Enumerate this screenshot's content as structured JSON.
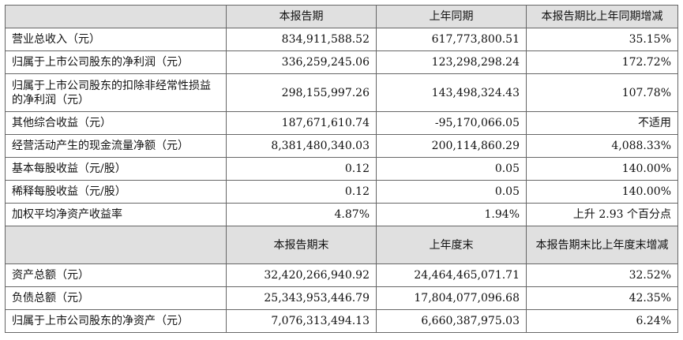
{
  "header1": [
    "本报告期",
    "上年同期",
    "本报告期比上年同期增减"
  ],
  "rows1": [
    {
      "label": "营业总收入（元）",
      "cur": "834,911,588.52",
      "prev": "617,773,800.51",
      "chg": "35.15%"
    },
    {
      "label": "归属于上市公司股东的净利润（元）",
      "cur": "336,259,245.06",
      "prev": "123,298,298.24",
      "chg": "172.72%"
    },
    {
      "label": "归属于上市公司股东的扣除非经常性损益的净利润（元）",
      "cur": "298,155,997.26",
      "prev": "143,498,324.43",
      "chg": "107.78%"
    },
    {
      "label": "其他综合收益（元）",
      "cur": "187,671,610.74",
      "prev": "-95,170,066.05",
      "chg": "不适用"
    },
    {
      "label": "经营活动产生的现金流量净额（元）",
      "cur": "8,381,480,340.03",
      "prev": "200,114,860.29",
      "chg": "4,088.33%"
    },
    {
      "label": "基本每股收益（元/股）",
      "cur": "0.12",
      "prev": "0.05",
      "chg": "140.00%"
    },
    {
      "label": "稀释每股收益（元/股）",
      "cur": "0.12",
      "prev": "0.05",
      "chg": "140.00%"
    },
    {
      "label": "加权平均净资产收益率",
      "cur": "4.87%",
      "prev": "1.94%",
      "chg": "上升 2.93 个百分点"
    }
  ],
  "header2": [
    "本报告期末",
    "上年度末",
    "本报告期末比上年度末增减"
  ],
  "rows2": [
    {
      "label": "资产总额（元）",
      "cur": "32,420,266,940.92",
      "prev": "24,464,465,071.71",
      "chg": "32.52%"
    },
    {
      "label": "负债总额（元）",
      "cur": "25,343,953,446.79",
      "prev": "17,804,077,096.68",
      "chg": "42.35%"
    },
    {
      "label": "归属于上市公司股东的净资产（元）",
      "cur": "7,076,313,494.13",
      "prev": "6,660,387,975.03",
      "chg": "6.24%"
    }
  ]
}
